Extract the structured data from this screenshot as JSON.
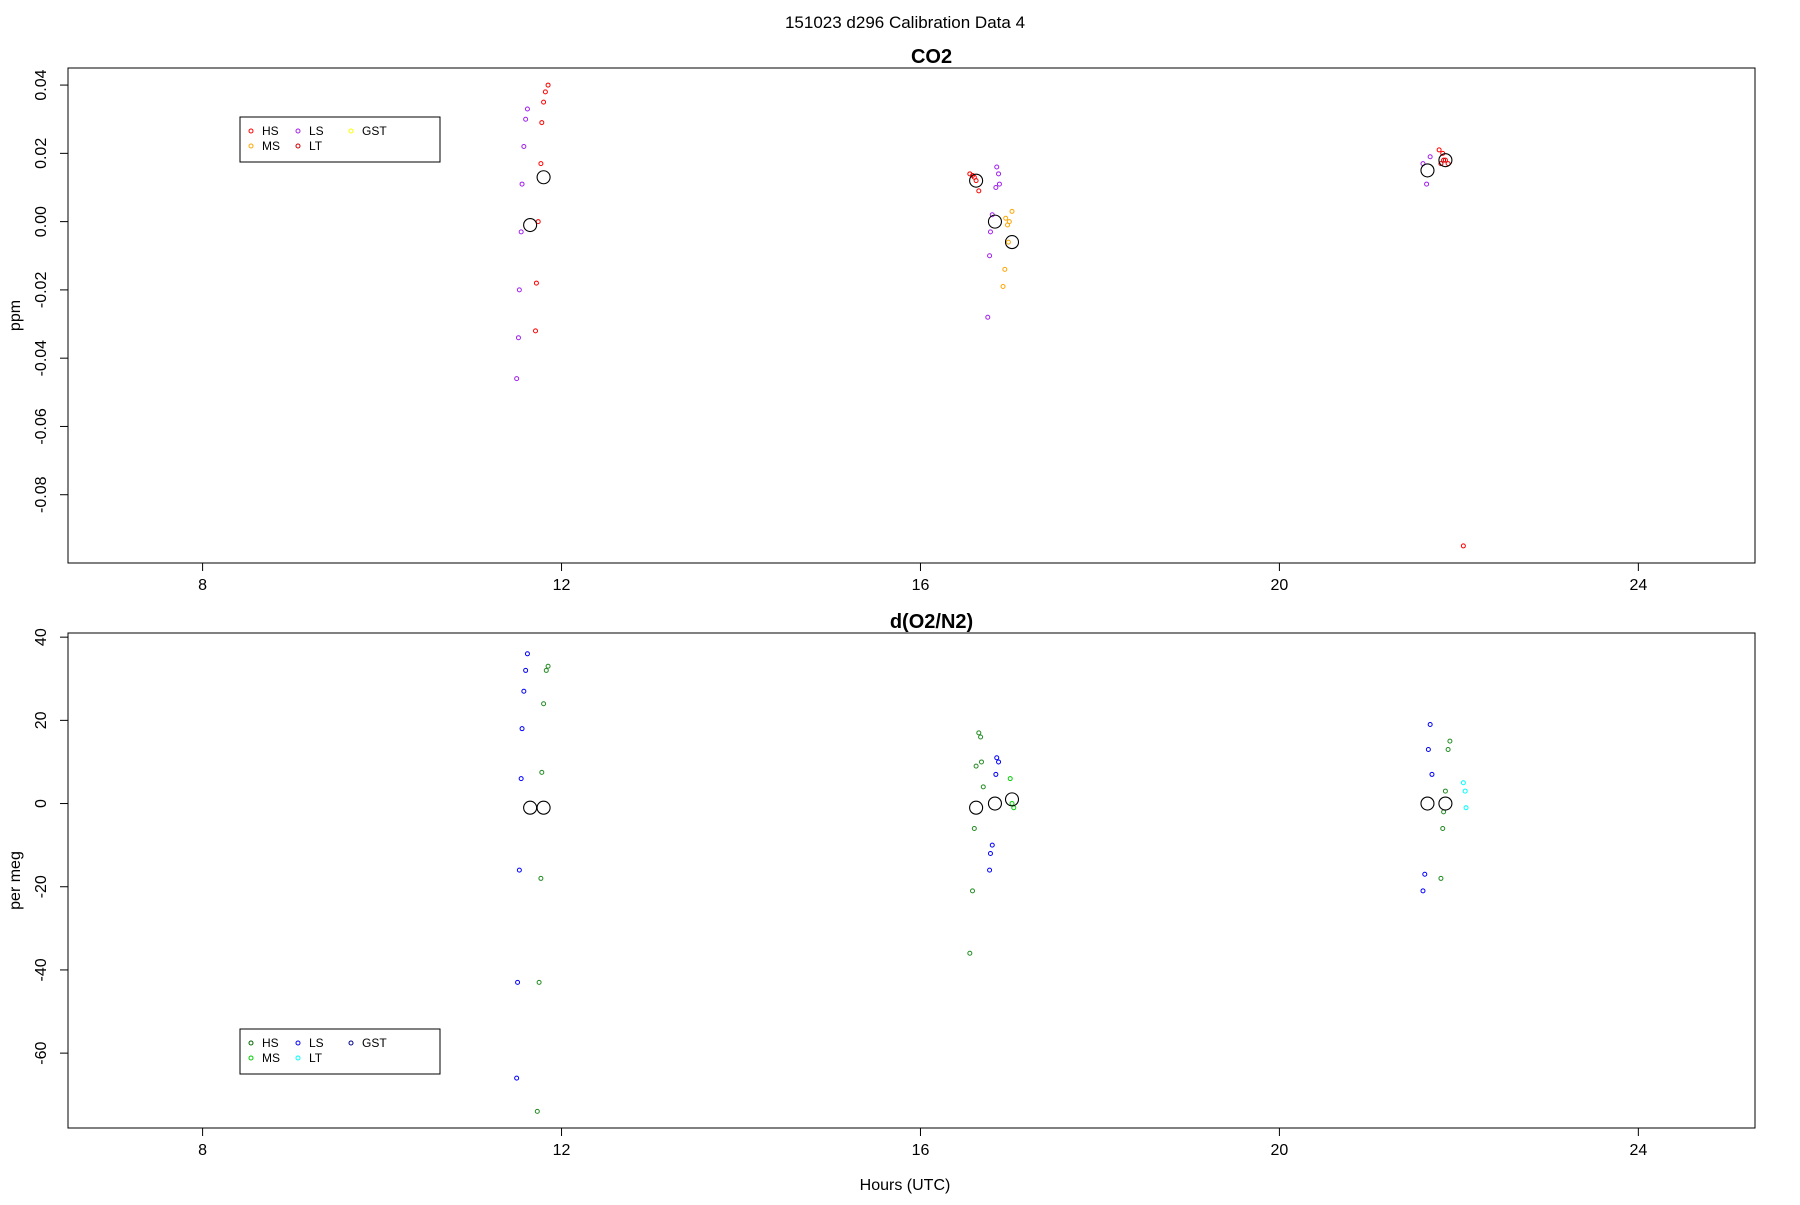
{
  "figure": {
    "title": "151023   d296   Calibration Data 4"
  },
  "chart_data": [
    {
      "type": "scatter",
      "title": "CO2",
      "xlabel": "",
      "ylabel": "ppm",
      "xlim": [
        6.5,
        25.3
      ],
      "ylim": [
        -0.1,
        0.045
      ],
      "xticks": [
        8,
        12,
        16,
        20,
        24
      ],
      "yticks": [
        -0.08,
        -0.06,
        -0.04,
        -0.02,
        0.0,
        0.02,
        0.04
      ],
      "ytick_labels": [
        "-0.08",
        "-0.06",
        "-0.04",
        "-0.02",
        "0.00",
        "0.02",
        "0.04"
      ],
      "legend": {
        "placement": "top-left",
        "entries": [
          {
            "label": "HS",
            "color": "#ff0000"
          },
          {
            "label": "MS",
            "color": "#ffa500"
          },
          {
            "label": "LS",
            "color": "#a020f0"
          },
          {
            "label": "LT",
            "color": "#cd0000"
          },
          {
            "label": "GST",
            "color": "#ffff00"
          }
        ]
      },
      "series": [
        {
          "name": "HS",
          "color": "#ff0000",
          "points": [
            [
              11.85,
              0.04
            ],
            [
              11.82,
              0.038
            ],
            [
              11.8,
              0.035
            ],
            [
              11.78,
              0.029
            ],
            [
              11.77,
              0.017
            ],
            [
              11.74,
              0.0
            ],
            [
              11.72,
              -0.018
            ],
            [
              11.71,
              -0.032
            ],
            [
              16.55,
              0.014
            ],
            [
              16.58,
              0.0135
            ],
            [
              16.6,
              0.013
            ],
            [
              16.62,
              0.012
            ],
            [
              16.65,
              0.009
            ],
            [
              21.78,
              0.021
            ],
            [
              21.82,
              0.02
            ],
            [
              21.85,
              0.018
            ],
            [
              21.88,
              0.017
            ],
            [
              22.05,
              -0.095
            ]
          ]
        },
        {
          "name": "MS",
          "color": "#ffa500",
          "points": [
            [
              16.95,
              0.001
            ],
            [
              16.97,
              -0.001
            ],
            [
              16.99,
              0.0
            ],
            [
              17.02,
              0.003
            ],
            [
              16.98,
              -0.006
            ],
            [
              16.94,
              -0.014
            ],
            [
              16.92,
              -0.019
            ]
          ]
        },
        {
          "name": "LS",
          "color": "#a020f0",
          "points": [
            [
              11.62,
              0.033
            ],
            [
              11.6,
              0.03
            ],
            [
              11.58,
              0.022
            ],
            [
              11.56,
              0.011
            ],
            [
              11.55,
              -0.003
            ],
            [
              11.53,
              -0.02
            ],
            [
              11.52,
              -0.034
            ],
            [
              11.5,
              -0.046
            ],
            [
              16.85,
              0.016
            ],
            [
              16.87,
              0.014
            ],
            [
              16.88,
              0.011
            ],
            [
              16.84,
              0.01
            ],
            [
              16.8,
              0.002
            ],
            [
              16.78,
              -0.003
            ],
            [
              16.77,
              -0.01
            ],
            [
              16.75,
              -0.028
            ],
            [
              21.6,
              0.017
            ],
            [
              21.68,
              0.019
            ],
            [
              21.64,
              0.011
            ]
          ]
        },
        {
          "name": "LT",
          "color": "#cd0000",
          "points": [
            [
              21.8,
              0.017
            ],
            [
              21.83,
              0.018
            ]
          ]
        },
        {
          "name": "GST",
          "color": "#ffff00",
          "points": []
        },
        {
          "name": "mean",
          "color": "#000000",
          "large": true,
          "points": [
            [
              11.65,
              -0.001
            ],
            [
              11.8,
              0.013
            ],
            [
              16.62,
              0.012
            ],
            [
              16.83,
              0.0
            ],
            [
              17.02,
              -0.006
            ],
            [
              21.65,
              0.015
            ],
            [
              21.85,
              0.018
            ]
          ]
        }
      ]
    },
    {
      "type": "scatter",
      "title": "d(O2/N2)",
      "xlabel": "Hours (UTC)",
      "ylabel": "per meg",
      "xlim": [
        6.5,
        25.3
      ],
      "ylim": [
        -78,
        41
      ],
      "xticks": [
        8,
        12,
        16,
        20,
        24
      ],
      "yticks": [
        -60,
        -40,
        -20,
        0,
        20,
        40
      ],
      "ytick_labels": [
        "-60",
        "-40",
        "-20",
        "0",
        "20",
        "40"
      ],
      "legend": {
        "placement": "bottom-left",
        "entries": [
          {
            "label": "HS",
            "color": "#006400"
          },
          {
            "label": "MS",
            "color": "#00cd00"
          },
          {
            "label": "LS",
            "color": "#0000ff"
          },
          {
            "label": "LT",
            "color": "#00ffff"
          },
          {
            "label": "GST",
            "color": "#00008b"
          }
        ]
      },
      "series": [
        {
          "name": "HS",
          "color": "#228b22",
          "points": [
            [
              11.85,
              33
            ],
            [
              11.83,
              32
            ],
            [
              11.8,
              24
            ],
            [
              11.78,
              7.5
            ],
            [
              11.77,
              -18
            ],
            [
              11.75,
              -43
            ],
            [
              11.73,
              -74
            ],
            [
              16.65,
              17
            ],
            [
              16.67,
              16
            ],
            [
              16.68,
              10
            ],
            [
              16.62,
              9
            ],
            [
              16.7,
              4
            ],
            [
              16.6,
              -6
            ],
            [
              16.58,
              -21
            ],
            [
              16.55,
              -36
            ],
            [
              21.9,
              15
            ],
            [
              21.88,
              13
            ],
            [
              21.85,
              3
            ],
            [
              21.83,
              -2
            ],
            [
              21.82,
              -6
            ],
            [
              21.8,
              -18
            ]
          ]
        },
        {
          "name": "MS",
          "color": "#00cd00",
          "points": [
            [
              17.0,
              6
            ],
            [
              17.02,
              0
            ],
            [
              17.04,
              -1
            ]
          ]
        },
        {
          "name": "LS",
          "color": "#0000ff",
          "points": [
            [
              11.62,
              36
            ],
            [
              11.6,
              32
            ],
            [
              11.58,
              27
            ],
            [
              11.56,
              18
            ],
            [
              11.55,
              6
            ],
            [
              11.53,
              -16
            ],
            [
              11.51,
              -43
            ],
            [
              11.5,
              -66
            ],
            [
              16.85,
              11
            ],
            [
              16.87,
              10
            ],
            [
              16.84,
              7
            ],
            [
              16.8,
              -10
            ],
            [
              16.78,
              -12
            ],
            [
              16.77,
              -16
            ],
            [
              21.68,
              19
            ],
            [
              21.66,
              13
            ],
            [
              21.7,
              7
            ],
            [
              21.62,
              -17
            ],
            [
              21.6,
              -21
            ]
          ]
        },
        {
          "name": "LT",
          "color": "#00ffff",
          "points": [
            [
              22.05,
              5
            ],
            [
              22.07,
              3
            ],
            [
              22.08,
              -1
            ]
          ]
        },
        {
          "name": "GST",
          "color": "#00008b",
          "points": []
        },
        {
          "name": "mean",
          "color": "#000000",
          "large": true,
          "points": [
            [
              11.65,
              -1
            ],
            [
              11.8,
              -1
            ],
            [
              16.62,
              -1
            ],
            [
              16.83,
              0
            ],
            [
              17.02,
              1
            ],
            [
              21.65,
              0
            ],
            [
              21.85,
              0
            ]
          ]
        }
      ]
    }
  ]
}
